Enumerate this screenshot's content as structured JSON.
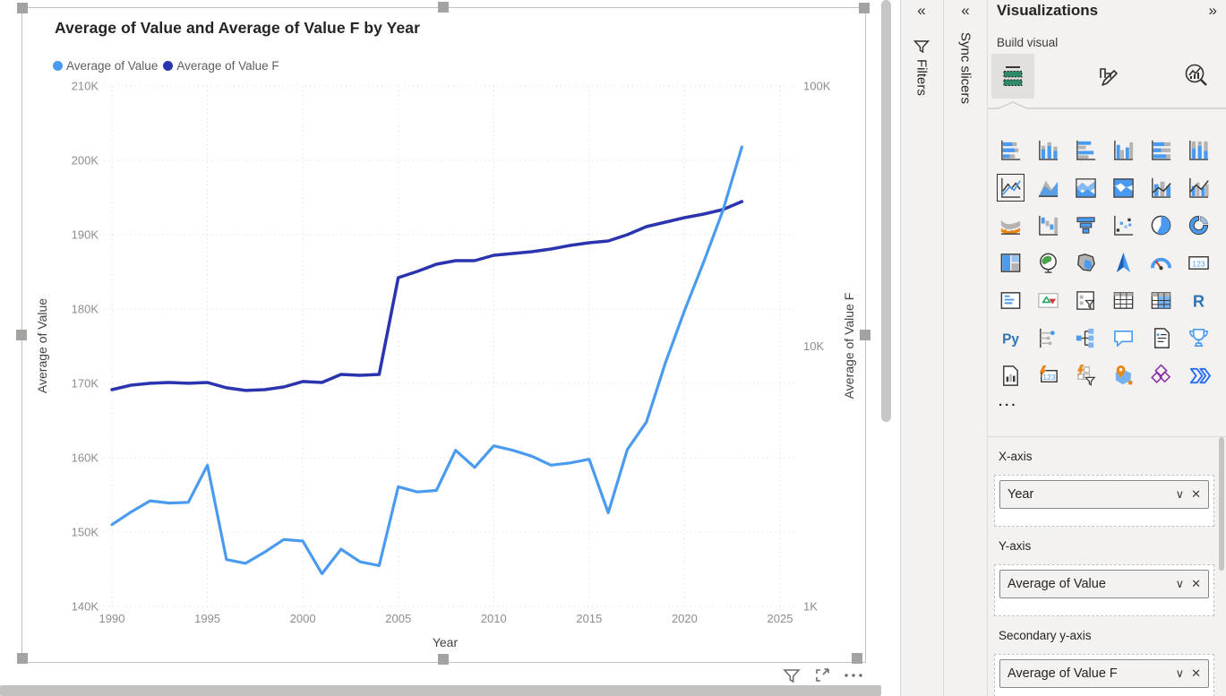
{
  "visual": {
    "title": "Average of Value and Average of Value F by Year",
    "toolbar": [
      "filter-funnel",
      "focus-mode",
      "more-options"
    ]
  },
  "chart_data": {
    "type": "line",
    "title": "Average of Value and Average of Value F by Year",
    "grid": true,
    "legend_position": "top-left",
    "x": [
      1990,
      1991,
      1992,
      1993,
      1994,
      1995,
      1996,
      1997,
      1998,
      1999,
      2000,
      2001,
      2002,
      2003,
      2004,
      2005,
      2006,
      2007,
      2008,
      2009,
      2010,
      2011,
      2012,
      2013,
      2014,
      2015,
      2016,
      2017,
      2018,
      2019,
      2020,
      2021,
      2022,
      2023
    ],
    "series": [
      {
        "name": "Average of Value",
        "axis": "left",
        "color": "#4a9bf0",
        "values": [
          151000,
          152700,
          154200,
          153900,
          154000,
          159000,
          146300,
          145800,
          147300,
          149000,
          148800,
          144400,
          147700,
          146000,
          145500,
          156100,
          155400,
          155600,
          161000,
          158700,
          161600,
          161000,
          160200,
          159000,
          159300,
          159800,
          152600,
          161100,
          164800,
          172800,
          179800,
          186300,
          193200,
          201800
        ]
      },
      {
        "name": "Average of Value F",
        "axis": "right",
        "color": "#2a34ae",
        "values": [
          6810,
          7085,
          7200,
          7255,
          7200,
          7255,
          6920,
          6760,
          6810,
          6975,
          7315,
          7255,
          7790,
          7730,
          7790,
          18340,
          19380,
          20650,
          21320,
          21320,
          22360,
          22715,
          23080,
          23635,
          24400,
          24985,
          25385,
          26830,
          28805,
          29970,
          31190,
          32195,
          33500,
          35970
        ]
      }
    ],
    "x_axis": {
      "label": "Year",
      "range": [
        1990,
        2025
      ],
      "ticks": [
        {
          "v": 1990,
          "label": "1990"
        },
        {
          "v": 1995,
          "label": "1995"
        },
        {
          "v": 2000,
          "label": "2000"
        },
        {
          "v": 2005,
          "label": "2005"
        },
        {
          "v": 2010,
          "label": "2010"
        },
        {
          "v": 2015,
          "label": "2015"
        },
        {
          "v": 2020,
          "label": "2020"
        },
        {
          "v": 2025,
          "label": "2025"
        }
      ]
    },
    "y_left": {
      "label": "Average of Value",
      "scale": "linear",
      "range": [
        140000,
        210000
      ],
      "ticks": [
        {
          "v": 210000,
          "label": "210K"
        },
        {
          "v": 200000,
          "label": "200K"
        },
        {
          "v": 190000,
          "label": "190K"
        },
        {
          "v": 180000,
          "label": "180K"
        },
        {
          "v": 170000,
          "label": "170K"
        },
        {
          "v": 160000,
          "label": "160K"
        },
        {
          "v": 150000,
          "label": "150K"
        },
        {
          "v": 140000,
          "label": "140K"
        }
      ]
    },
    "y_right": {
      "label": "Average of Value F",
      "scale": "log",
      "range": [
        1000,
        100000
      ],
      "ticks": [
        {
          "v": 100000,
          "label": "100K"
        },
        {
          "v": 10000,
          "label": "10K"
        },
        {
          "v": 1000,
          "label": "1K"
        }
      ]
    }
  },
  "panes": {
    "filters": {
      "label": "Filters",
      "collapse_icon": "chevron-double-left"
    },
    "sync_slicers": {
      "label": "Sync slicers",
      "collapse_icon": "chevron-double-left"
    },
    "visualizations": {
      "title": "Visualizations",
      "expand_icon": "chevron-double-right",
      "section_label": "Build visual",
      "tabs": [
        "build-visual-tab",
        "format-visual-tab",
        "analytics-tab"
      ],
      "active_tab": 0,
      "selected_visual": "line-chart",
      "visual_types": [
        "stacked-bar-chart",
        "stacked-column-chart",
        "clustered-bar-chart",
        "clustered-column-chart",
        "100-stacked-bar-chart",
        "100-stacked-column-chart",
        "line-chart",
        "area-chart",
        "stacked-area-chart",
        "100-stacked-area-chart",
        "line-and-stacked-column-chart",
        "line-and-clustered-column-chart",
        "ribbon-chart",
        "waterfall-chart",
        "funnel-chart",
        "scatter-chart",
        "pie-chart",
        "donut-chart",
        "treemap",
        "map",
        "filled-map",
        "azure-map",
        "gauge",
        "card",
        "multi-row-card",
        "kpi",
        "slicer",
        "table",
        "matrix",
        "r-script-visual",
        "python-visual",
        "key-influencers",
        "decomposition-tree",
        "q-and-a",
        "smart-narrative",
        "metrics",
        "paginated-report",
        "dynamic-card",
        "dynamic-slicer",
        "arcgis-map",
        "power-apps",
        "power-automate"
      ],
      "more_visuals_label": "...",
      "wells": [
        {
          "label": "X-axis",
          "field": "Year"
        },
        {
          "label": "Y-axis",
          "field": "Average of Value"
        },
        {
          "label": "Secondary y-axis",
          "field": "Average of Value F"
        }
      ]
    }
  }
}
